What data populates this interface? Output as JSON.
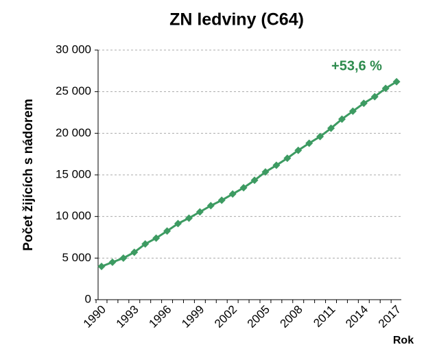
{
  "chart_data": {
    "type": "line",
    "title": "ZN ledviny (C64)",
    "ylabel": "Počet žijících s nádorem",
    "xlabel": "Rok",
    "annotation": "+53,6 %",
    "categories": [
      "1990",
      null,
      null,
      "1993",
      null,
      null,
      "1996",
      null,
      null,
      "1999",
      null,
      null,
      "2002",
      null,
      null,
      "2005",
      null,
      null,
      "2008",
      null,
      null,
      "2011",
      null,
      null,
      "2014",
      null,
      null,
      "2017"
    ],
    "values": [
      4000,
      4500,
      5000,
      5700,
      6700,
      7400,
      8250,
      9150,
      9800,
      10550,
      11300,
      11950,
      12700,
      13450,
      14350,
      15350,
      16150,
      17000,
      17950,
      18800,
      19600,
      20600,
      21700,
      22650,
      23600,
      24400,
      25400,
      26200
    ],
    "color": "#3d9b62",
    "annotation_color": "#2e8b4e",
    "ylim": [
      0,
      30000
    ],
    "yticks": [
      0,
      {
        "value": 5000,
        "label": "5 000"
      },
      {
        "value": 10000,
        "label": "10 000"
      },
      {
        "value": 15000,
        "label": "15 000"
      },
      {
        "value": 20000,
        "label": "20 000"
      },
      {
        "value": 25000,
        "label": "25 000"
      },
      {
        "value": 30000,
        "label": "30 000"
      }
    ],
    "grid": true
  }
}
